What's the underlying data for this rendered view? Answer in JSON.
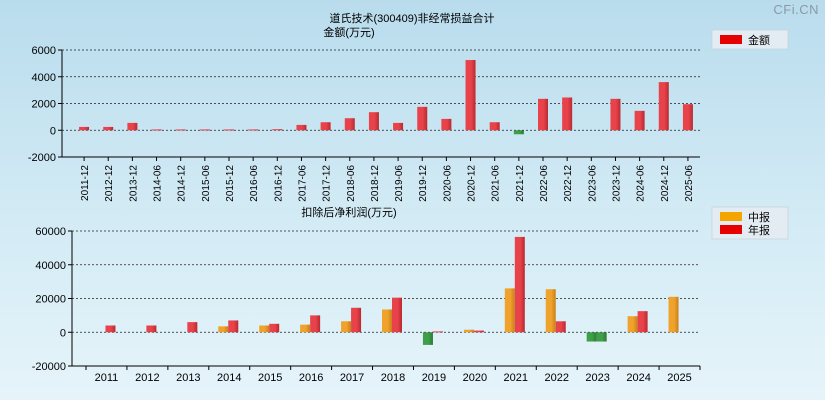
{
  "watermark": "CFi.CN",
  "colors": {
    "bar_red": "#e8434b",
    "bar_red_dark": "#b82a30",
    "bar_orange": "#f0a32c",
    "bar_orange_dark": "#c7801a",
    "bar_green": "#3f9e4a",
    "bar_green_dark": "#2a7a34",
    "legend_red": "#e60000",
    "legend_orange": "#f5a500"
  },
  "chart_data": [
    {
      "type": "bar",
      "title": "道氏技术(300409)非经常损益合计",
      "subtitle": "金额(万元)",
      "legend": [
        "金额"
      ],
      "legend_position": "top-right",
      "grid": true,
      "ylim": [
        -2000,
        6000
      ],
      "yticks": [
        "6000",
        "4000",
        "2000",
        "0",
        "-2000"
      ],
      "ytick_values": [
        6000,
        4000,
        2000,
        0,
        -2000
      ],
      "categories": [
        "2011-12",
        "2012-12",
        "2013-12",
        "2014-06",
        "2014-12",
        "2015-06",
        "2015-12",
        "2016-06",
        "2016-12",
        "2017-06",
        "2017-12",
        "2018-06",
        "2018-12",
        "2019-06",
        "2019-12",
        "2020-06",
        "2020-12",
        "2021-06",
        "2021-12",
        "2022-06",
        "2022-12",
        "2023-06",
        "2023-12",
        "2024-06",
        "2024-12",
        "2025-06"
      ],
      "series": [
        {
          "name": "金额",
          "values": [
            250,
            250,
            550,
            60,
            60,
            60,
            60,
            60,
            80,
            400,
            600,
            900,
            1350,
            550,
            1750,
            850,
            5250,
            600,
            -300,
            2350,
            2450,
            null,
            2350,
            1450,
            3600,
            1950
          ]
        }
      ]
    },
    {
      "type": "bar",
      "title": "扣除后净利润(万元)",
      "legend": [
        "中报",
        "年报"
      ],
      "legend_position": "top-right",
      "grid": true,
      "ylim": [
        -20000,
        60000
      ],
      "yticks": [
        "60000",
        "40000",
        "20000",
        "0",
        "-20000"
      ],
      "ytick_values": [
        60000,
        40000,
        20000,
        0,
        -20000
      ],
      "categories": [
        "2011",
        "2012",
        "2013",
        "2014",
        "2015",
        "2016",
        "2017",
        "2018",
        "2019",
        "2020",
        "2021",
        "2022",
        "2023",
        "2024",
        "2025"
      ],
      "series": [
        {
          "name": "中报",
          "values": [
            null,
            null,
            null,
            3500,
            4000,
            4500,
            6500,
            13500,
            -7500,
            1500,
            26000,
            25500,
            -5500,
            9500,
            21000
          ]
        },
        {
          "name": "年报",
          "values": [
            4000,
            4000,
            6000,
            7000,
            5000,
            10000,
            14500,
            20500,
            500,
            1000,
            56500,
            6500,
            -5500,
            12500,
            null
          ]
        }
      ]
    }
  ]
}
